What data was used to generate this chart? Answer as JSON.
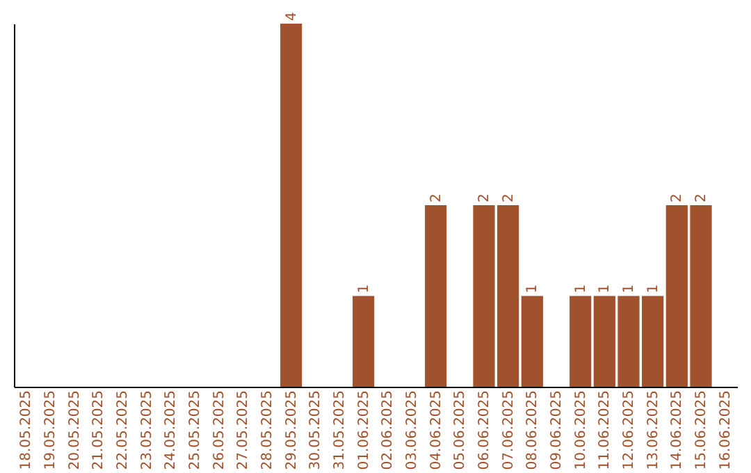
{
  "chart_data": {
    "type": "bar",
    "categories": [
      "18.05.2025",
      "19.05.2025",
      "20.05.2025",
      "21.05.2025",
      "22.05.2025",
      "23.05.2025",
      "24.05.2025",
      "25.05.2025",
      "26.05.2025",
      "27.05.2025",
      "28.05.2025",
      "29.05.2025",
      "30.05.2025",
      "31.05.2025",
      "01.06.2025",
      "02.06.2025",
      "03.06.2025",
      "04.06.2025",
      "05.06.2025",
      "06.06.2025",
      "07.06.2025",
      "08.06.2025",
      "09.06.2025",
      "10.06.2025",
      "11.06.2025",
      "12.06.2025",
      "13.06.2025",
      "14.06.2025",
      "15.06.2025",
      "16.06.2025"
    ],
    "values": [
      0,
      0,
      0,
      0,
      0,
      0,
      0,
      0,
      0,
      0,
      0,
      4,
      0,
      0,
      1,
      0,
      0,
      2,
      0,
      2,
      2,
      1,
      0,
      1,
      1,
      1,
      1,
      2,
      2,
      0
    ],
    "value_labels": [
      null,
      null,
      null,
      null,
      null,
      null,
      null,
      null,
      null,
      null,
      null,
      "4",
      null,
      null,
      "1",
      null,
      null,
      "2",
      null,
      "2",
      "2",
      "1",
      null,
      "1",
      "1",
      "1",
      "1",
      "2",
      "2",
      null
    ],
    "color": "#a0522d",
    "grid": false
  }
}
